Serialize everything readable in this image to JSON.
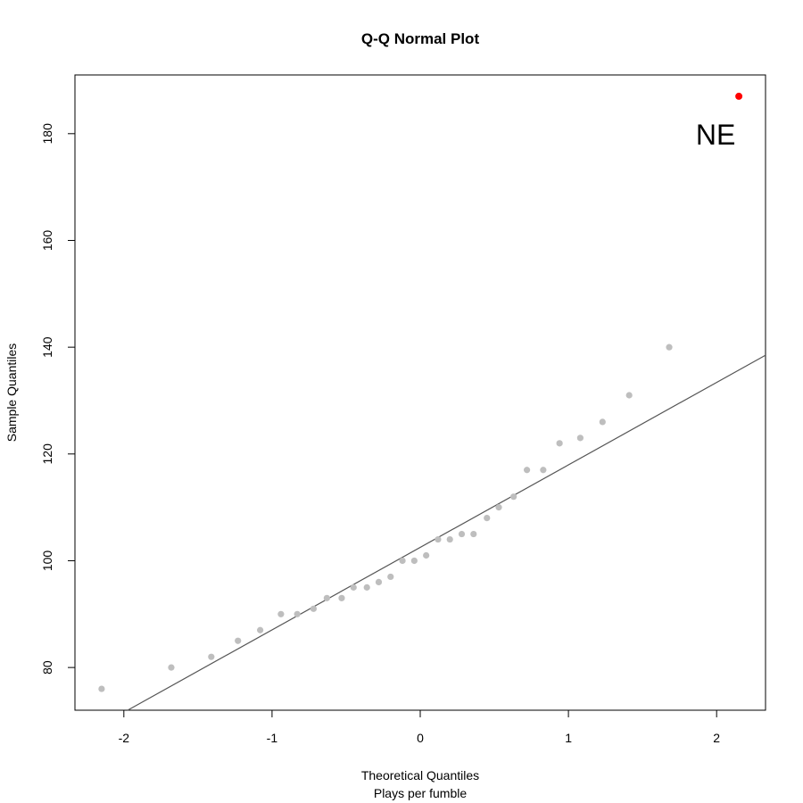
{
  "chart_data": {
    "type": "scatter",
    "title": "Q-Q Normal Plot",
    "xlabel": "Theoretical Quantiles",
    "xlabel_sub": "Plays per fumble",
    "ylabel": "Sample Quantiles",
    "xlim": [
      -2.33,
      2.33
    ],
    "ylim": [
      72,
      191
    ],
    "x_ticks": [
      -2,
      -1,
      0,
      1,
      2
    ],
    "y_ticks": [
      80,
      100,
      120,
      140,
      160,
      180
    ],
    "grid": false,
    "point_color": "#bebebe",
    "highlight_color": "#ff0000",
    "line_color": "#555555",
    "series": [
      {
        "x": [
          -2.15,
          -1.68,
          -1.41,
          -1.23,
          -1.08,
          -0.94,
          -0.83,
          -0.72,
          -0.63,
          -0.53,
          -0.45,
          -0.36,
          -0.28,
          -0.2,
          -0.12,
          -0.04,
          0.04,
          0.12,
          0.2,
          0.28,
          0.36,
          0.45,
          0.53,
          0.63,
          0.72,
          0.83,
          0.94,
          1.08,
          1.23,
          1.41,
          1.68
        ],
        "y": [
          76,
          80,
          82,
          85,
          87,
          90,
          90,
          91,
          93,
          93,
          95,
          95,
          96,
          97,
          100,
          100,
          101,
          104,
          104,
          105,
          105,
          108,
          110,
          112,
          117,
          117,
          122,
          123,
          126,
          131,
          140
        ]
      }
    ],
    "highlight": {
      "x": 2.15,
      "y": 187,
      "label": "NE"
    },
    "reference_line": {
      "x": [
        -2.33,
        2.33
      ],
      "y": [
        66.5,
        138.5
      ]
    }
  }
}
